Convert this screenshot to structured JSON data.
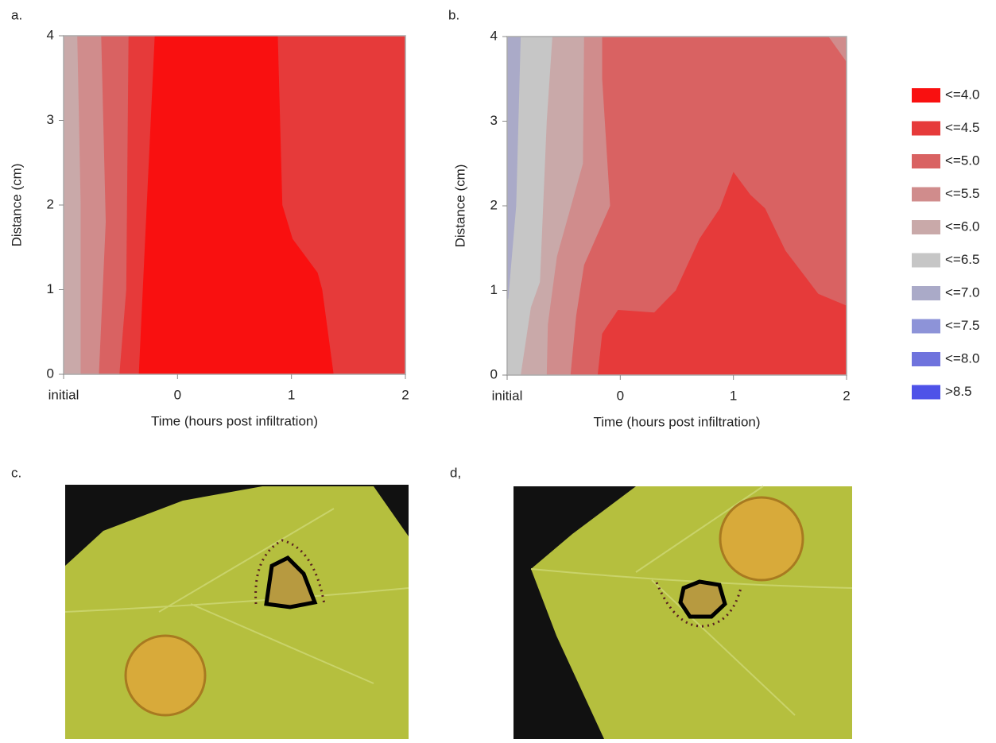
{
  "chart_data": [
    {
      "type": "contour",
      "panel": "a.",
      "xlabel": "Time (hours post infiltration)",
      "ylabel": "Distance (cm)",
      "xlim": [
        -1,
        2
      ],
      "ylim": [
        0,
        4
      ],
      "xticks": [
        {
          "value": -1,
          "label": "initial"
        },
        0,
        1,
        2
      ],
      "yticks": [
        0,
        1,
        2,
        3,
        4
      ],
      "regions": [
        {
          "level": 1,
          "x": [
            -1,
            2,
            2,
            -1
          ],
          "y": [
            0,
            0,
            4,
            4
          ]
        },
        {
          "level": 0,
          "x": [
            -1,
            1.37,
            1.27,
            1.23,
            1.01,
            0.92,
            0.88,
            -1
          ],
          "y": [
            0,
            0,
            1.0,
            1.2,
            1.6,
            2.0,
            4,
            4
          ]
        },
        {
          "level": 1,
          "x": [
            -1,
            -0.34,
            -0.27,
            -0.2,
            -1
          ],
          "y": [
            0,
            0,
            2,
            4,
            4
          ]
        },
        {
          "level": 2,
          "x": [
            -1,
            -0.51,
            -0.45,
            -0.43,
            -1
          ],
          "y": [
            0,
            0,
            1,
            4,
            4
          ]
        },
        {
          "level": 3,
          "x": [
            -1,
            -0.69,
            -0.63,
            -0.67,
            -1
          ],
          "y": [
            0,
            0,
            1.8,
            4,
            4
          ]
        },
        {
          "level": 4,
          "x": [
            -1,
            -0.85,
            -0.85,
            -0.88,
            -1
          ],
          "y": [
            0,
            0,
            2,
            4,
            4
          ]
        }
      ]
    },
    {
      "type": "contour",
      "panel": "b.",
      "xlabel": "Time (hours post infiltration)",
      "ylabel": "Distance (cm)",
      "xlim": [
        -1,
        2
      ],
      "ylim": [
        0,
        4
      ],
      "xticks": [
        {
          "value": -1,
          "label": "initial"
        },
        0,
        1,
        2
      ],
      "yticks": [
        0,
        1,
        2,
        3,
        4
      ],
      "regions": [
        {
          "level": 2,
          "x": [
            -1,
            2,
            2,
            -1
          ],
          "y": [
            0,
            0,
            4,
            4
          ]
        },
        {
          "level": 3,
          "x": [
            1.84,
            2,
            2
          ],
          "y": [
            4,
            3.7,
            4
          ]
        },
        {
          "level": 1,
          "x": [
            -0.2,
            -0.16,
            -0.02,
            0.3,
            0.49,
            0.7,
            0.88,
            1.0,
            1.15,
            1.28,
            1.46,
            1.75,
            2,
            2
          ],
          "y": [
            0,
            0.49,
            0.77,
            0.74,
            1.0,
            1.61,
            1.97,
            2.4,
            2.13,
            1.97,
            1.47,
            0.96,
            0.82,
            0
          ]
        },
        {
          "level": 3,
          "x": [
            -1,
            -0.44,
            -0.39,
            -0.32,
            -0.09,
            -0.16,
            -0.16,
            -1
          ],
          "y": [
            0,
            0,
            0.7,
            1.3,
            2,
            3.5,
            4,
            4
          ]
        },
        {
          "level": 4,
          "x": [
            -1,
            -0.65,
            -0.64,
            -0.56,
            -0.33,
            -0.32,
            -1
          ],
          "y": [
            0,
            0,
            0.6,
            1.4,
            2.5,
            4,
            4
          ]
        },
        {
          "level": 5,
          "x": [
            -1,
            -0.88,
            -0.79,
            -0.71,
            -0.65,
            -0.6,
            -1
          ],
          "y": [
            0,
            0,
            0.8,
            1.1,
            3,
            4,
            4
          ]
        },
        {
          "level": 6,
          "x": [
            -1,
            -0.99,
            -0.92,
            -0.88,
            -1
          ],
          "y": [
            0.9,
            0.9,
            2,
            4,
            4
          ]
        }
      ]
    }
  ],
  "legend": {
    "items": [
      {
        "label": "<=4.0",
        "color": "#f91010"
      },
      {
        "label": "<=4.5",
        "color": "#e63a3a"
      },
      {
        "label": "<=5.0",
        "color": "#d96262"
      },
      {
        "label": "<=5.5",
        "color": "#d08c8c"
      },
      {
        "label": "<=6.0",
        "color": "#c9a9a9"
      },
      {
        "label": "<=6.5",
        "color": "#c6c6c6"
      },
      {
        "label": "<=7.0",
        "color": "#aaaac8"
      },
      {
        "label": "<=7.5",
        "color": "#8d93d8"
      },
      {
        "label": "<=8.0",
        "color": "#6f73dd"
      },
      {
        "label": ">8.5",
        "color": "#4e52e8"
      }
    ]
  },
  "photos": [
    {
      "panel": "c."
    },
    {
      "panel": "d,"
    }
  ]
}
